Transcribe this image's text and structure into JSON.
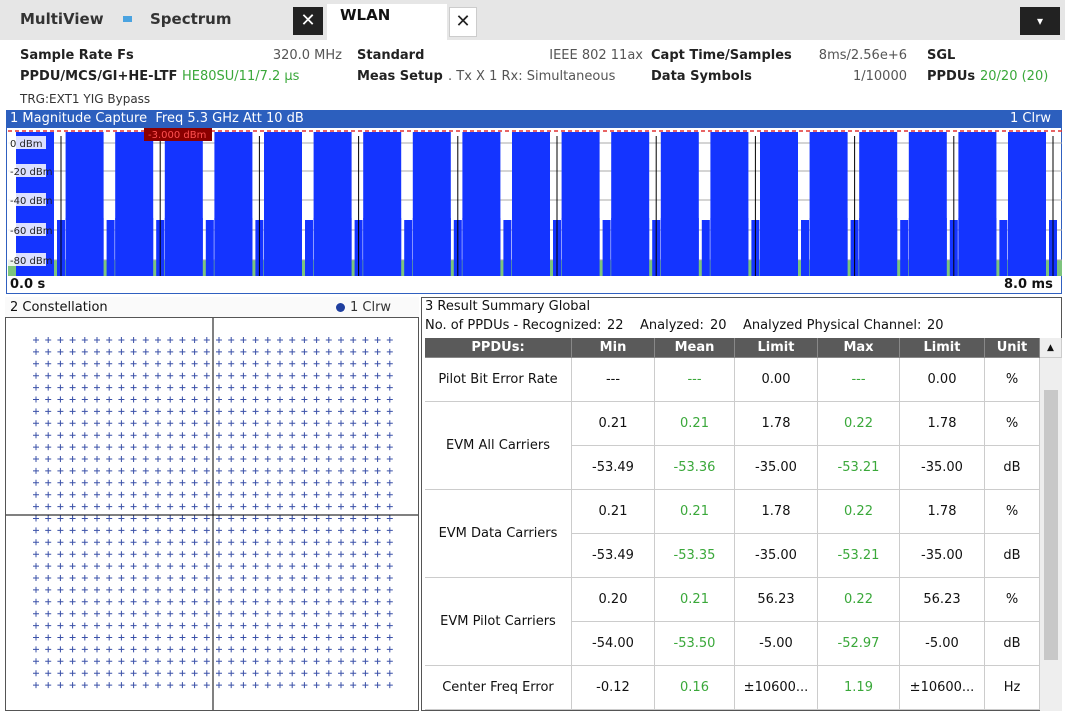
{
  "tabs": {
    "app": "MultiView",
    "spectrum": "Spectrum",
    "wlan": "WLAN"
  },
  "info": [
    [
      {
        "label": "Sample Rate Fs",
        "value": "320.0 MHz"
      },
      {
        "label": "Standard",
        "value": "IEEE 802 11ax"
      },
      {
        "label": "Capt Time/Samples",
        "value": "8ms/2.56e+6"
      },
      {
        "label": "SGL"
      }
    ],
    [
      {
        "label": "PPDU/MCS/GI+HE-LTF",
        "value": "HE80SU/11/7.2 µs",
        "color": "#3aa83a"
      },
      {
        "label": "Meas Setup",
        "value": ". Tx X 1 Rx: Simultaneous"
      },
      {
        "label": "Data Symbols",
        "value": "1/10000"
      },
      {
        "label": "PPDUs",
        "value": "20/20 (20)",
        "color": "#3aa83a"
      }
    ]
  ],
  "trigger": "TRG:EXT1 YIG Bypass",
  "magnitude": {
    "title": "1 Magnitude Capture  Freq 5.3 GHz Att 10 dB",
    "trace": "1 Clrw",
    "y_labels": [
      "0 dBm",
      "-20 dBm",
      "-40 dBm",
      "-60 dBm",
      "-80 dBm"
    ],
    "threshold": "-3.000 dBm",
    "x_start": "0.0 s",
    "x_end": "8.0 ms"
  },
  "constellation": {
    "title": "2 Constellation",
    "trace": "1 Clrw"
  },
  "summary": {
    "title": "3 Result Summary Global",
    "counts": [
      {
        "label": "No. of PPDUs - Recognized:",
        "value": 22
      },
      {
        "label": "Analyzed:",
        "value": 20
      },
      {
        "label": "Analyzed Physical Channel:",
        "value": 20
      }
    ],
    "columns": [
      "PPDUs:",
      "Min",
      "Mean",
      "Limit",
      "Max",
      "Limit",
      "Unit"
    ],
    "rows": [
      {
        "label": "Pilot Bit Error Rate",
        "values": [
          "---",
          "---",
          "0.00",
          "---",
          "0.00",
          "%"
        ]
      },
      {
        "label": "EVM All Carriers",
        "values": [
          "0.21",
          "0.21",
          "1.78",
          "0.22",
          "1.78",
          "%"
        ]
      },
      {
        "values": [
          "-53.49",
          "-53.36",
          "-35.00",
          "-53.21",
          "-35.00",
          "dB"
        ]
      },
      {
        "label": "EVM Data Carriers",
        "values": [
          "0.21",
          "0.21",
          "1.78",
          "0.22",
          "1.78",
          "%"
        ]
      },
      {
        "values": [
          "-53.49",
          "-53.35",
          "-35.00",
          "-53.21",
          "-35.00",
          "dB"
        ]
      },
      {
        "label": "EVM Pilot Carriers",
        "values": [
          "0.20",
          "0.21",
          "56.23",
          "0.22",
          "56.23",
          "%"
        ]
      },
      {
        "values": [
          "-54.00",
          "-53.50",
          "-5.00",
          "-52.97",
          "-5.00",
          "dB"
        ]
      },
      {
        "label": "Center Freq Error",
        "values": [
          "-0.12",
          "0.16",
          "±10600...",
          "1.19",
          "±10600...",
          "Hz"
        ]
      }
    ]
  }
}
